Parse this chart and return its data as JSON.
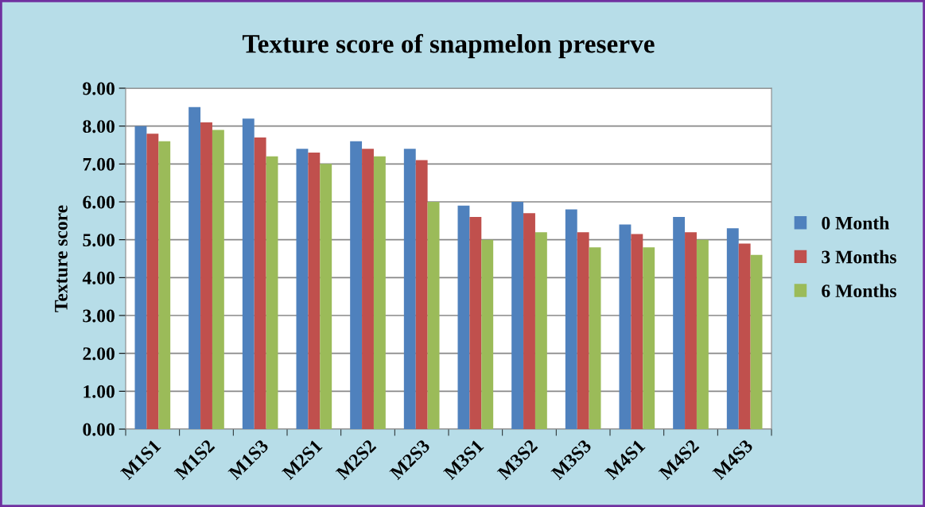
{
  "chart_data": {
    "type": "bar",
    "title": "Texture score of snapmelon preserve",
    "ylabel": "Texture score",
    "categories": [
      "M1S1",
      "M1S2",
      "M1S3",
      "M2S1",
      "M2S2",
      "M2S3",
      "M3S1",
      "M3S2",
      "M3S3",
      "M4S1",
      "M4S2",
      "M4S3"
    ],
    "series": [
      {
        "name": "0 Month",
        "color": "#4f81bd",
        "values": [
          8.0,
          8.5,
          8.2,
          7.4,
          7.6,
          7.4,
          5.9,
          6.0,
          5.8,
          5.4,
          5.6,
          5.3
        ]
      },
      {
        "name": "3 Months",
        "color": "#c0504d",
        "values": [
          7.8,
          8.1,
          7.7,
          7.3,
          7.4,
          7.1,
          5.6,
          5.7,
          5.2,
          5.15,
          5.2,
          4.9
        ]
      },
      {
        "name": "6 Months",
        "color": "#9bbb59",
        "values": [
          7.6,
          7.9,
          7.2,
          7.0,
          7.2,
          6.0,
          5.0,
          5.2,
          4.8,
          4.8,
          5.0,
          4.6
        ]
      }
    ],
    "ylim": [
      0,
      9
    ],
    "yticks": [
      {
        "value": 0,
        "label": "0.00"
      },
      {
        "value": 1,
        "label": "1.00"
      },
      {
        "value": 2,
        "label": "2.00"
      },
      {
        "value": 3,
        "label": "3.00"
      },
      {
        "value": 4,
        "label": "4.00"
      },
      {
        "value": 5,
        "label": "5.00"
      },
      {
        "value": 6,
        "label": "6.00"
      },
      {
        "value": 7,
        "label": "7.00"
      },
      {
        "value": 8,
        "label": "8.00"
      },
      {
        "value": 9,
        "label": "9.00"
      }
    ],
    "grid": "y",
    "legend": "right"
  }
}
